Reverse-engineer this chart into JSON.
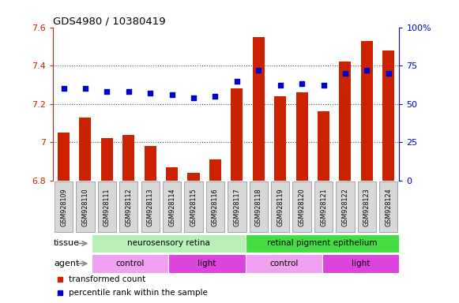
{
  "title": "GDS4980 / 10380419",
  "samples": [
    "GSM928109",
    "GSM928110",
    "GSM928111",
    "GSM928112",
    "GSM928113",
    "GSM928114",
    "GSM928115",
    "GSM928116",
    "GSM928117",
    "GSM928118",
    "GSM928119",
    "GSM928120",
    "GSM928121",
    "GSM928122",
    "GSM928123",
    "GSM928124"
  ],
  "bar_values": [
    7.05,
    7.13,
    7.02,
    7.04,
    6.98,
    6.87,
    6.84,
    6.91,
    7.28,
    7.55,
    7.24,
    7.26,
    7.16,
    7.42,
    7.53,
    7.48
  ],
  "dot_values": [
    60,
    60,
    58,
    58,
    57,
    56,
    54,
    55,
    65,
    72,
    62,
    63,
    62,
    70,
    72,
    70
  ],
  "bar_color": "#cc2200",
  "dot_color": "#0000cc",
  "ylim_left": [
    6.8,
    7.6
  ],
  "ylim_right": [
    0,
    100
  ],
  "yticks_left": [
    6.8,
    7.0,
    7.2,
    7.4,
    7.6
  ],
  "yticks_right": [
    0,
    25,
    50,
    75,
    100
  ],
  "ytick_labels_left": [
    "6.8",
    "7",
    "7.2",
    "7.4",
    "7.6"
  ],
  "ytick_labels_right": [
    "0",
    "25",
    "50",
    "75",
    "100%"
  ],
  "background_color": "#ffffff",
  "tissue_labels": [
    {
      "label": "neurosensory retina",
      "start": 0,
      "end": 7,
      "color": "#b8f0b8"
    },
    {
      "label": "retinal pigment epithelium",
      "start": 8,
      "end": 15,
      "color": "#44dd44"
    }
  ],
  "agent_labels": [
    {
      "label": "control",
      "start": 0,
      "end": 3,
      "color": "#f0a0f0"
    },
    {
      "label": "light",
      "start": 4,
      "end": 7,
      "color": "#dd44dd"
    },
    {
      "label": "control",
      "start": 8,
      "end": 11,
      "color": "#f0a0f0"
    },
    {
      "label": "light",
      "start": 12,
      "end": 15,
      "color": "#dd44dd"
    }
  ],
  "legend_items": [
    {
      "label": "transformed count",
      "color": "#cc2200"
    },
    {
      "label": "percentile rank within the sample",
      "color": "#0000cc"
    }
  ],
  "tick_color_left": "#cc2200",
  "tick_color_right": "#0000cc",
  "bar_bottom": 6.8,
  "gridline_values": [
    7.0,
    7.2,
    7.4
  ]
}
